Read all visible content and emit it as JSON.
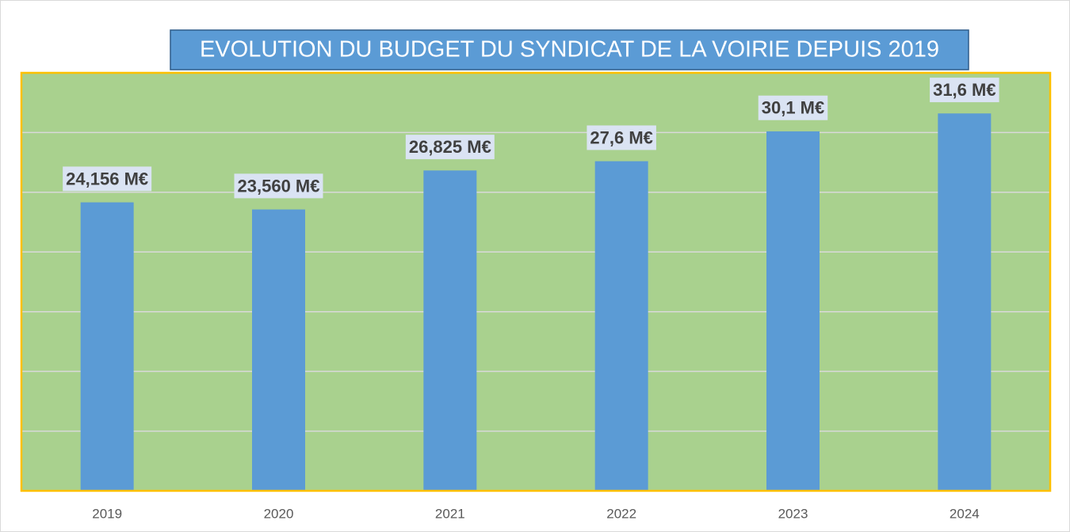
{
  "chart_data": {
    "type": "bar",
    "title": "EVOLUTION DU BUDGET DU SYNDICAT DE LA VOIRIE DEPUIS 2019",
    "categories": [
      "2019",
      "2020",
      "2021",
      "2022",
      "2023",
      "2024"
    ],
    "values": [
      24.156,
      23.56,
      26.825,
      27.6,
      30.1,
      31.6
    ],
    "value_labels": [
      "24,156 M€",
      "23,560 M€",
      "26,825 M€",
      "27,6 M€",
      "30,1 M€",
      "31,6 M€"
    ],
    "color": "#5b9bd5",
    "ylim": [
      0,
      35
    ],
    "yticks": [
      0,
      5,
      10,
      15,
      20,
      25,
      30,
      35
    ],
    "grid": true
  }
}
